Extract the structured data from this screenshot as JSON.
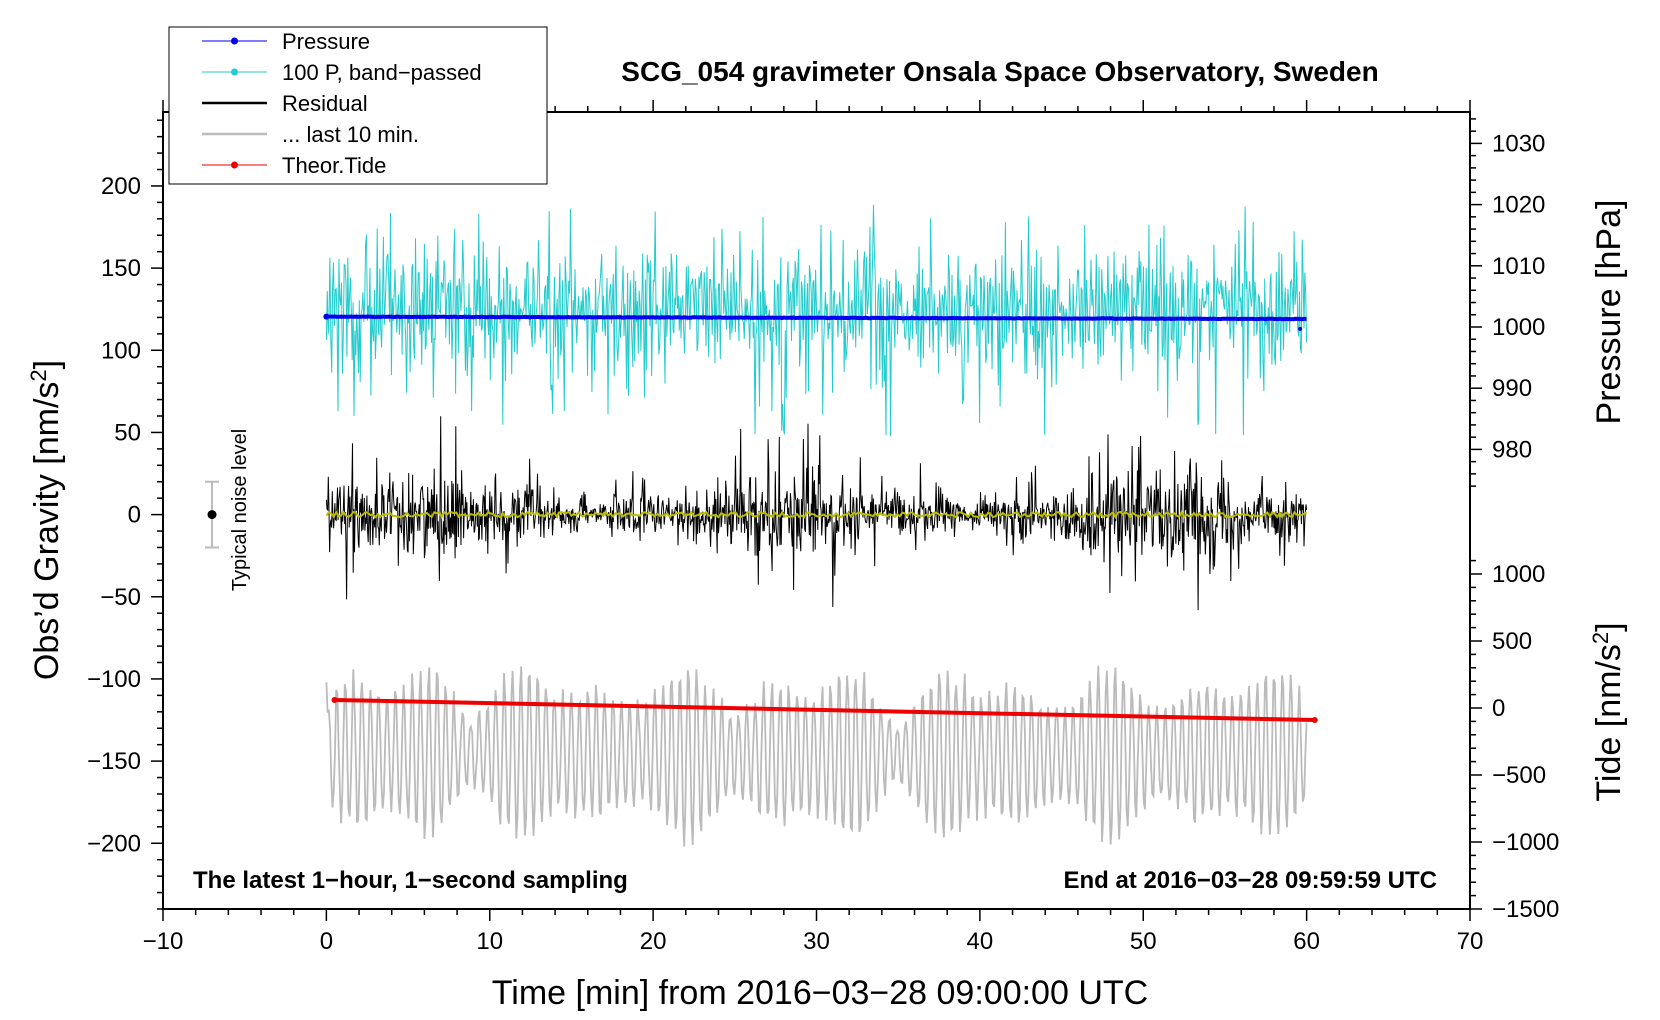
{
  "chart_data": {
    "type": "line",
    "title": "SCG_054 gravimeter Onsala Space Observatory, Sweden",
    "xlabel": "Time [min] from 2016−03−28 09:00:00 UTC",
    "ylabel_left": "Obs’d Gravity [nm/s²]",
    "ylabel_right_top": "Pressure [hPa]",
    "ylabel_right_bottom": "Tide [nm/s²]",
    "xlim": [
      -10,
      70
    ],
    "ylim_left": [
      -240,
      245
    ],
    "x_ticks": [
      "−10",
      "0",
      "10",
      "20",
      "30",
      "40",
      "50",
      "60",
      "70"
    ],
    "x_tick_values": [
      -10,
      0,
      10,
      20,
      30,
      40,
      50,
      60,
      70
    ],
    "y_left_ticks": [
      "200",
      "150",
      "100",
      "50",
      "0",
      "−50",
      "−100",
      "−150",
      "−200"
    ],
    "y_left_tick_values": [
      200,
      150,
      100,
      50,
      0,
      -50,
      -100,
      -150,
      -200
    ],
    "pressure_ticks": [
      "1030",
      "1020",
      "1010",
      "1000",
      "990",
      "980"
    ],
    "pressure_tick_values": [
      1030,
      1020,
      1010,
      1000,
      990,
      980
    ],
    "tide_ticks": [
      "1000",
      "500",
      "0",
      "−500",
      "−1000",
      "−1500"
    ],
    "tide_tick_values": [
      1000,
      500,
      0,
      -500,
      -1000,
      -1500
    ],
    "legend": [
      {
        "label": "Pressure",
        "color": "#0000ee",
        "marker": true
      },
      {
        "label": "100 P, band−passed",
        "color": "#22cccc",
        "marker": true
      },
      {
        "label": "Residual",
        "color": "#000000",
        "marker": false
      },
      {
        "label": "... last 10 min.",
        "color": "#bbbbbb",
        "marker": false
      },
      {
        "label": "Theor.Tide",
        "color": "#ee0000",
        "marker": true
      }
    ],
    "series": [
      {
        "name": "Pressure",
        "units": "hPa",
        "x_range": [
          0,
          60
        ],
        "start": 1001.7,
        "end": 1001.3
      },
      {
        "name": "100 P, band−passed",
        "units": "nm/s²",
        "x_range": [
          0,
          60
        ],
        "center": 125,
        "amplitude": 45
      },
      {
        "name": "Residual",
        "units": "nm/s²",
        "x_range": [
          0,
          60
        ],
        "center": 0,
        "amplitude": 40
      },
      {
        "name": "Residual smoothed",
        "units": "nm/s²",
        "x_range": [
          0,
          60
        ],
        "center": 0,
        "amplitude": 2
      },
      {
        "name": "... last 10 min.",
        "units": "nm/s²",
        "x_range": [
          0,
          60
        ],
        "center": -145,
        "amplitude": 45
      },
      {
        "name": "Theor.Tide",
        "units": "nm/s²",
        "x_range": [
          0.5,
          60.5
        ],
        "start": 60,
        "end": -90
      }
    ],
    "noise_label": "Typical noise level",
    "noise_bar": [
      -20,
      20
    ],
    "annotation_left": "The latest 1−hour, 1−second sampling",
    "annotation_right": "End at 2016−03−28 09:59:59 UTC",
    "colors": {
      "pressure": "#0000ee",
      "bandpassed": "#22cccc",
      "residual": "#000000",
      "smoothed": "#bbbb00",
      "last10": "#bbbbbb",
      "tide": "#ee0000",
      "noise_bar": "#bbbbbb"
    }
  }
}
